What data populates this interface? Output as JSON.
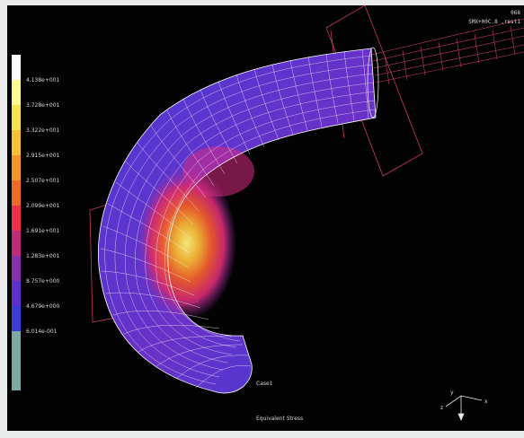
{
  "viewport": {
    "top_right_lines": [
      "068",
      "SMX+00C.8 ,rest1"
    ],
    "load_case": "Case1",
    "result_type": "Equivalent Stress"
  },
  "legend": {
    "labels": [
      "4.138e+001",
      "3.728e+001",
      "3.322e+001",
      "2.915e+001",
      "2.507e+001",
      "2.099e+001",
      "1.691e+001",
      "1.283e+001",
      "8.757e+000",
      "4.679e+000",
      "6.014e-001"
    ],
    "colors": [
      "#fbfbfb",
      "#fcfa90",
      "#f6e44b",
      "#f6c233",
      "#f39627",
      "#ef6a26",
      "#ee2f49",
      "#c02a7b",
      "#8531ad",
      "#5f2fcd",
      "#3b3bd6",
      "#7ea9a4"
    ]
  },
  "axis_triad": {
    "labels": [
      "y",
      "x",
      "z"
    ]
  }
}
